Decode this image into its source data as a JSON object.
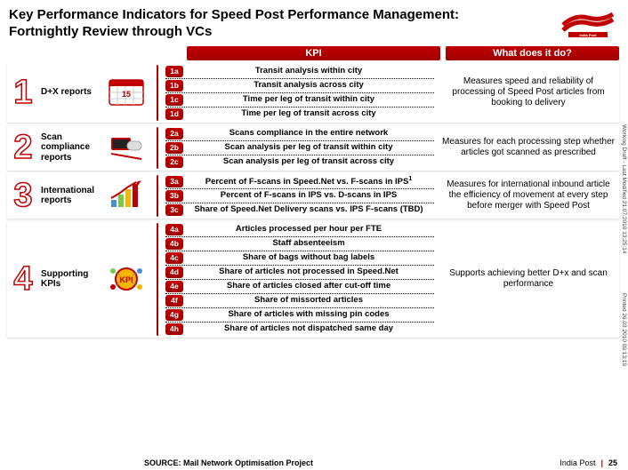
{
  "title": "Key Performance Indicators for Speed Post Performance Management: Fortnightly Review through VCs",
  "headers": {
    "kpi": "KPI",
    "what": "What does it do?"
  },
  "sections": [
    {
      "num": "1",
      "label": "D+X reports",
      "kpis": [
        {
          "code": "1a",
          "text": "Transit analysis within city"
        },
        {
          "code": "1b",
          "text": "Transit analysis across city"
        },
        {
          "code": "1c",
          "text": "Time per leg of transit within city"
        },
        {
          "code": "1d",
          "text": "Time per leg of transit across city"
        }
      ],
      "what": "Measures speed and reliability of processing of Speed Post articles from booking to delivery"
    },
    {
      "num": "2",
      "label": "Scan compliance reports",
      "kpis": [
        {
          "code": "2a",
          "text": "Scans compliance in the entire network"
        },
        {
          "code": "2b",
          "text": "Scan analysis per leg of transit within city"
        },
        {
          "code": "2c",
          "text": "Scan analysis per leg of transit across city"
        }
      ],
      "what": "Measures for each processing step whether articles got scanned as prescribed"
    },
    {
      "num": "3",
      "label": "International reports",
      "kpis": [
        {
          "code": "3a",
          "text": "Percent of F-scans in Speed.Net vs. F-scans in IPS",
          "sup": "1"
        },
        {
          "code": "3b",
          "text": "Percent of F-scans in IPS vs. D-scans in IPS"
        },
        {
          "code": "3c",
          "text": "Share of Speed.Net Delivery scans vs. IPS F-scans (TBD)"
        }
      ],
      "what": "Measures for international inbound article the efficiency of movement at every step before merger with Speed Post"
    },
    {
      "num": "4",
      "label": "Supporting KPIs",
      "kpis": [
        {
          "code": "4a",
          "text": "Articles processed per hour per FTE"
        },
        {
          "code": "4b",
          "text": "Staff absenteeism"
        },
        {
          "code": "4c",
          "text": "Share of bags without bag labels"
        },
        {
          "code": "4d",
          "text": "Share of articles not processed in Speed.Net"
        },
        {
          "code": "4e",
          "text": "Share of articles closed after cut-off time"
        },
        {
          "code": "4f",
          "text": "Share of missorted articles"
        },
        {
          "code": "4g",
          "text": "Share of articles with missing pin codes"
        },
        {
          "code": "4h",
          "text": "Share of articles not dispatched same day"
        }
      ],
      "what": "Supports achieving better D+x and scan performance"
    }
  ],
  "footer": {
    "source": "SOURCE: Mail Network Optimisation Project",
    "org": "India Post",
    "page": "25"
  },
  "side1": "Working Draft - Last Modified 21.07.2010 13:25:14",
  "side2": "Printed 26.03.2010 09:13:19"
}
